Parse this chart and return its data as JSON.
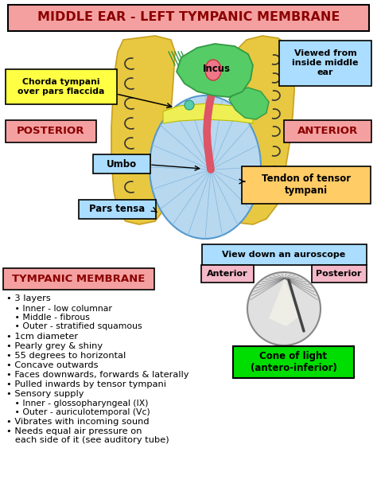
{
  "title": "MIDDLE EAR - LEFT TYMPANIC MEMBRANE",
  "title_bg": "#f4a0a0",
  "bg_color": "#ffffff",
  "chorda_label": "Chorda tympani\nover pars flaccida",
  "chorda_bg": "#ffff44",
  "posterior_label": "POSTERIOR",
  "posterior_bg": "#f4a0a0",
  "anterior_label": "ANTERIOR",
  "anterior_bg": "#f4a0a0",
  "umbo_label": "Umbo",
  "umbo_bg": "#aaddff",
  "pars_label": "Pars tensa",
  "pars_bg": "#aaddff",
  "tendon_label": "Tendon of tensor\ntympani",
  "tendon_bg": "#ffcc66",
  "viewed_label": "Viewed from\ninside middle\near",
  "viewed_bg": "#aaddff",
  "incus_label": "Incus",
  "auroscope_label": "View down an auroscope",
  "auroscope_bg": "#aaddff",
  "ant_small_label": "Anterior",
  "ant_small_bg": "#f4b8c8",
  "post_small_label": "Posterior",
  "post_small_bg": "#f4b8c8",
  "cone_label": "Cone of light\n(antero-inferior)",
  "cone_bg": "#00dd00",
  "notes_title": "TYMPANIC MEMBRANE",
  "notes_title_bg": "#f4a0a0",
  "ear_yellow": "#e8c840",
  "ear_edge": "#c8a020",
  "membrane_blue": "#b8d8f0",
  "membrane_edge": "#5599cc",
  "green_incus": "#55cc66",
  "green_edge": "#339944",
  "pink_malleus": "#dd5566",
  "spoke_color": "#88bbdd"
}
